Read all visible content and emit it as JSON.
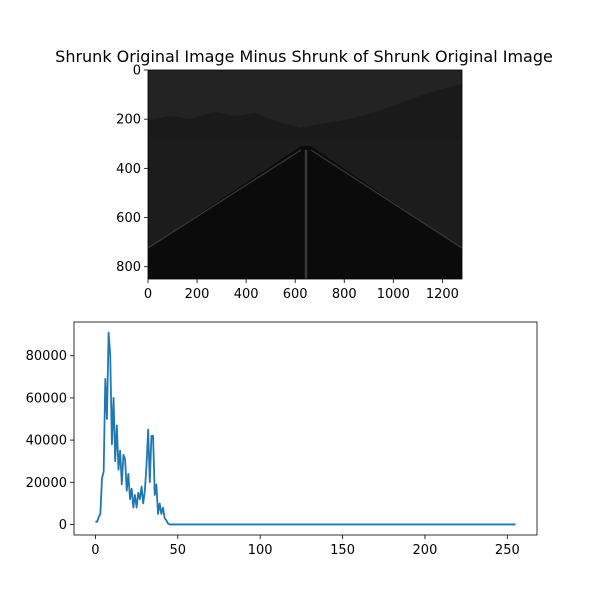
{
  "figure": {
    "title": "Shrunk Original Image Minus Shrunk of Shrunk Original Image"
  },
  "chart_data": [
    {
      "type": "image",
      "title": "Shrunk Original Image Minus Shrunk of Shrunk Original Image",
      "description": "very dark grayscale road landscape",
      "xlim": [
        0,
        1280
      ],
      "ylim": [
        850,
        0
      ],
      "xticks": [
        0,
        200,
        400,
        600,
        800,
        1000,
        1200
      ],
      "yticks": [
        0,
        200,
        400,
        600,
        800
      ],
      "colors": {
        "sky": "#232323",
        "mountains": "#1a1a1a",
        "desert": "#1c1c1c",
        "road": "#0b0b0b",
        "lane_marking": "#3a3a3a"
      }
    },
    {
      "type": "line",
      "xlim": [
        -13,
        268
      ],
      "ylim": [
        -5000,
        96000
      ],
      "xticks": [
        0,
        50,
        100,
        150,
        200,
        250
      ],
      "yticks": [
        0,
        20000,
        40000,
        60000,
        80000
      ],
      "line_color": "#1f77b4",
      "series": [
        {
          "x": [
            0,
            1,
            2,
            3,
            4,
            5,
            6,
            7,
            8,
            9,
            10,
            11,
            12,
            13,
            14,
            15,
            16,
            17,
            18,
            19,
            20,
            21,
            22,
            23,
            24,
            25,
            26,
            27,
            28,
            29,
            30,
            31,
            32,
            33,
            34,
            35,
            36,
            37,
            38,
            39,
            40,
            41,
            42,
            43,
            44,
            45,
            46,
            47,
            50,
            100,
            150,
            200,
            255
          ],
          "values": [
            1500,
            1200,
            3500,
            5000,
            22000,
            25000,
            69000,
            50000,
            91000,
            80000,
            38000,
            60000,
            30000,
            47000,
            26000,
            35000,
            19000,
            33000,
            31000,
            16000,
            24000,
            12000,
            17000,
            8000,
            14000,
            8000,
            15000,
            12000,
            18000,
            10000,
            16000,
            28000,
            45000,
            20000,
            42000,
            42000,
            14000,
            19000,
            5000,
            10000,
            5000,
            8000,
            3000,
            2000,
            500,
            0,
            0,
            0,
            0,
            0,
            0,
            0,
            0
          ]
        }
      ]
    }
  ]
}
